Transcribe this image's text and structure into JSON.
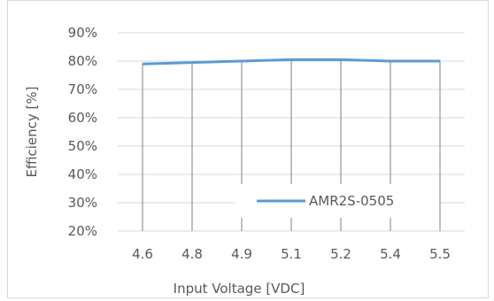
{
  "chart_data": {
    "type": "line",
    "title": "",
    "xlabel": "Input Voltage [VDC]",
    "ylabel": "Efficiency [%]",
    "categories": [
      "4.6",
      "4.8",
      "4.9",
      "5.1",
      "5.2",
      "5.4",
      "5.5"
    ],
    "series": [
      {
        "name": "AMR2S-0505",
        "values": [
          79,
          79.5,
          80,
          80.5,
          80.5,
          80,
          80
        ],
        "color": "#5b9bd5"
      }
    ],
    "ylim": [
      20,
      90
    ],
    "yticks": [
      "20%",
      "30%",
      "40%",
      "50%",
      "60%",
      "70%",
      "80%",
      "90%"
    ],
    "grid": "vertical drop lines at categories, horizontal gridlines",
    "legend_position": "bottom-right inside plot"
  }
}
